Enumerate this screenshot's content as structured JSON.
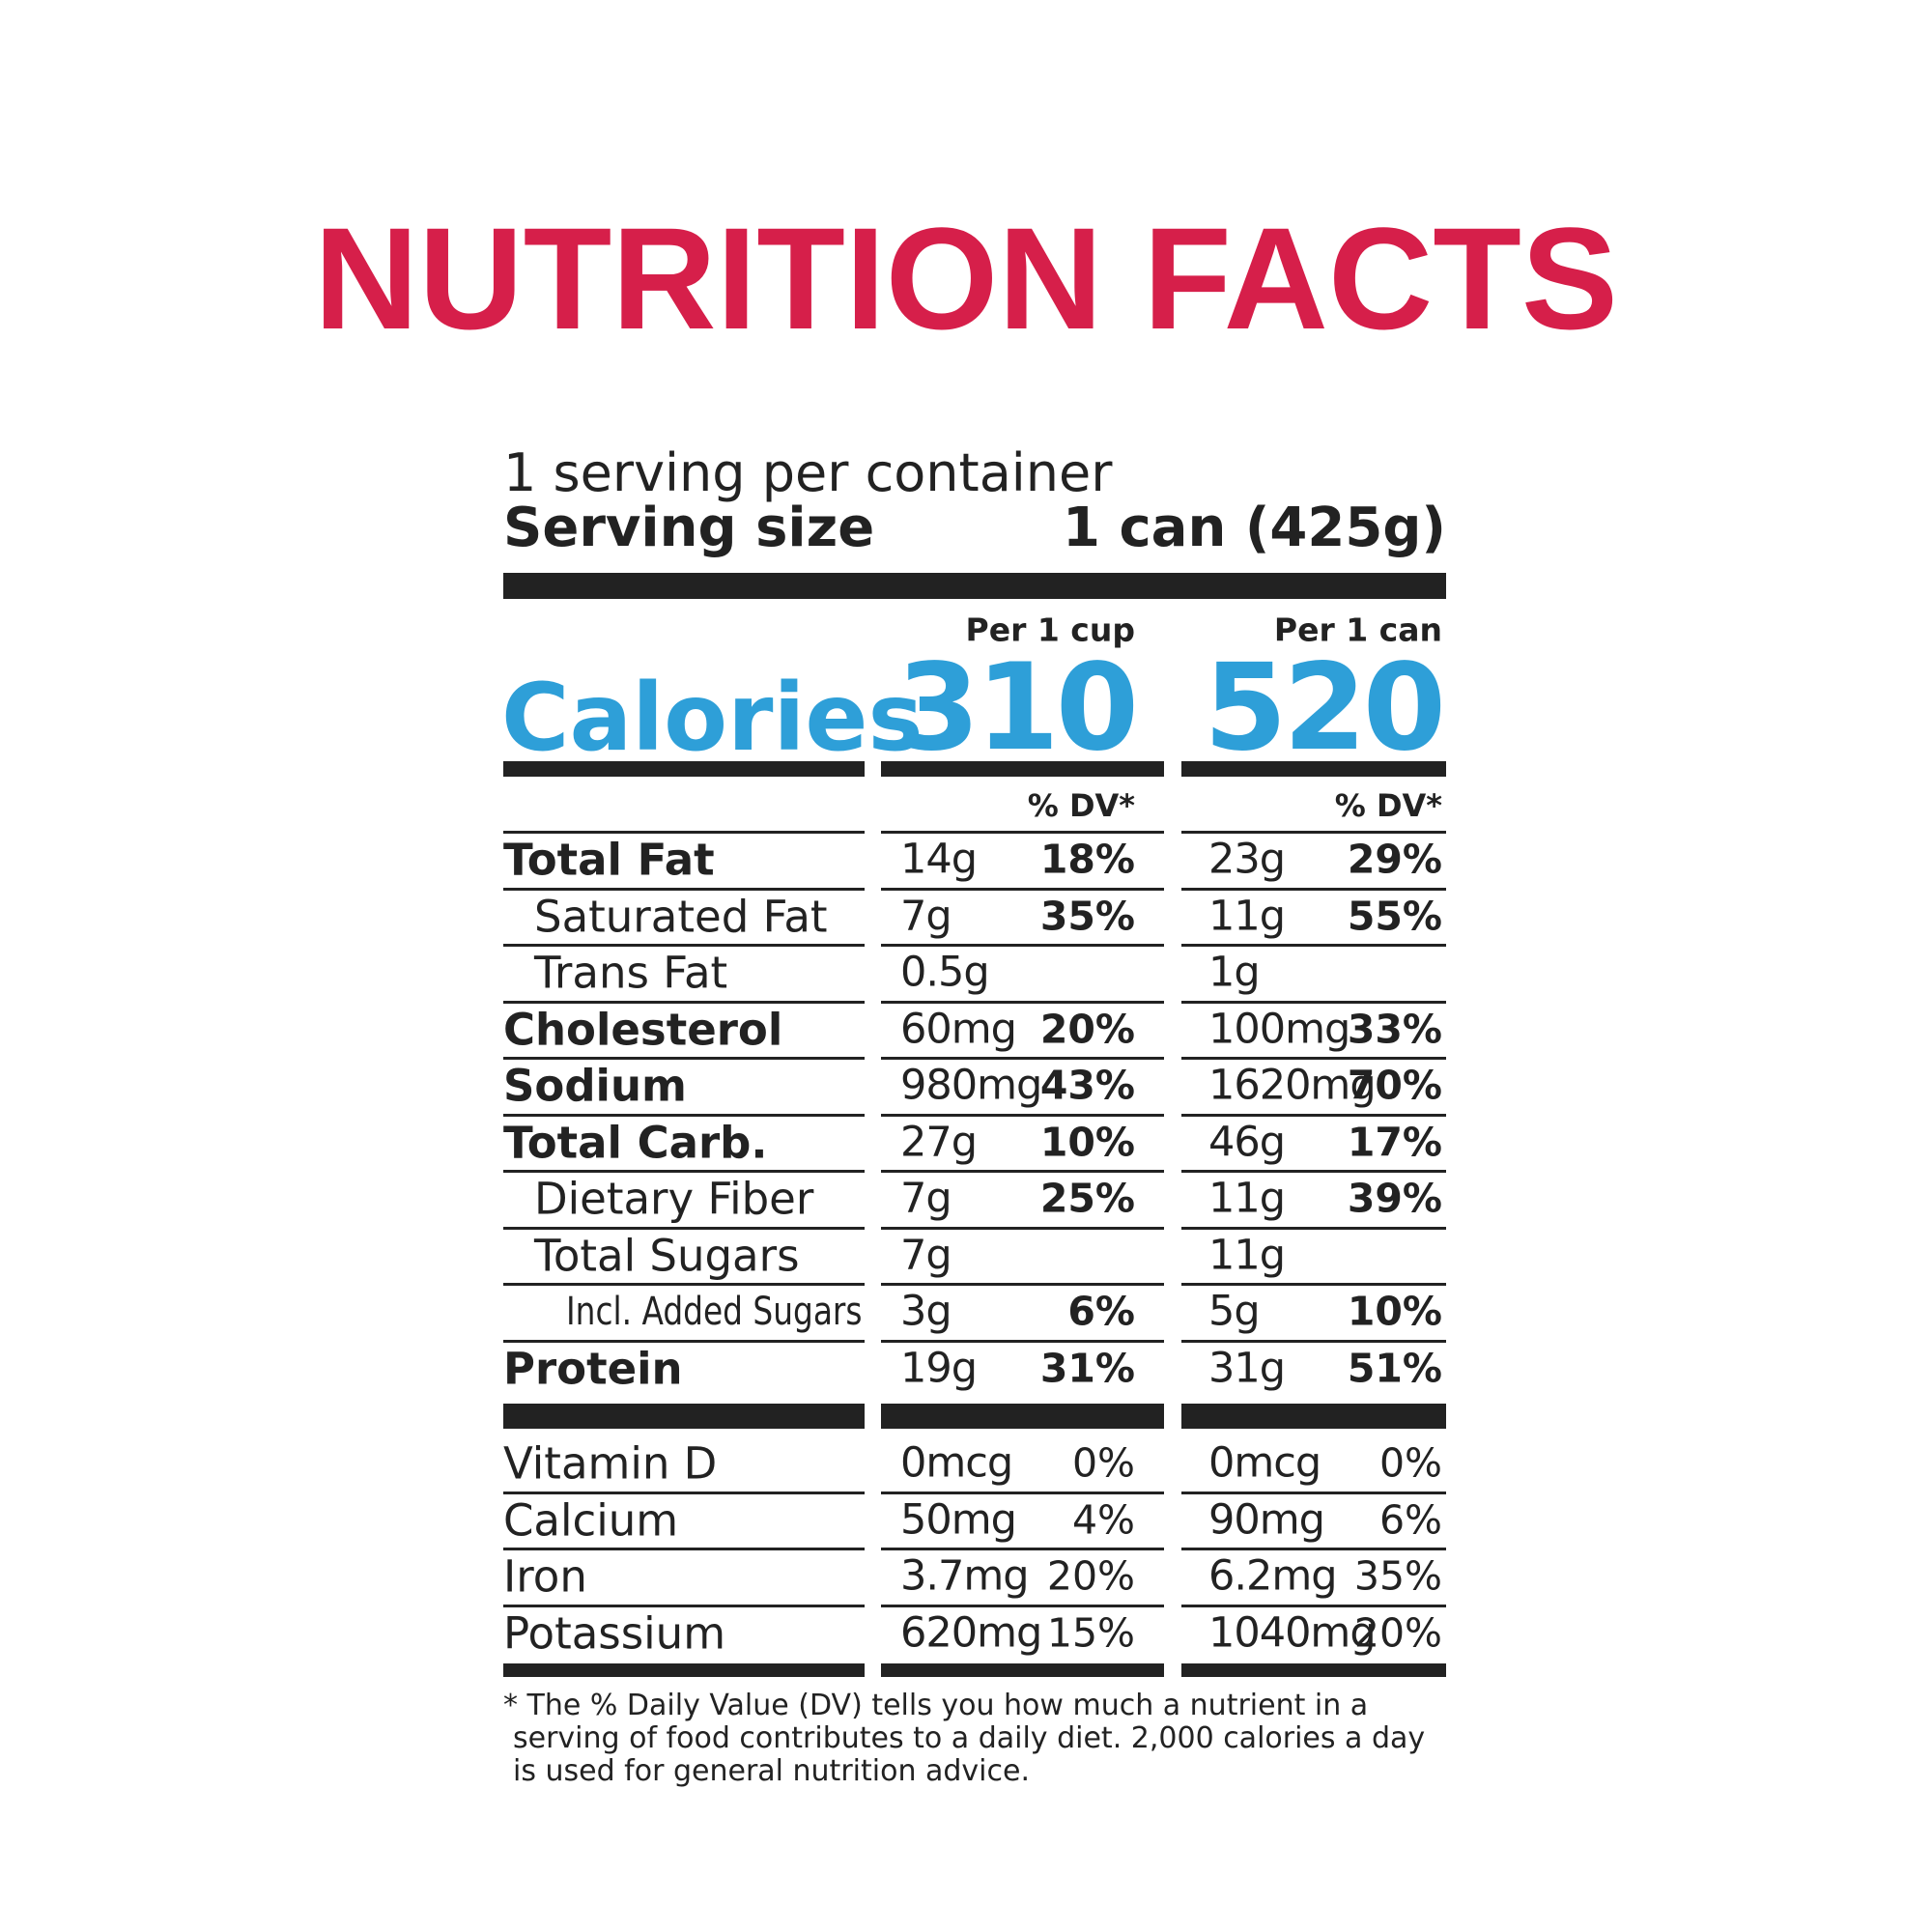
{
  "title": "NUTRITION FACTS",
  "servings": "1 serving per container",
  "serving_size": {
    "label": "Serving size",
    "value": "1 can (425g)"
  },
  "calories": {
    "label": "Calories",
    "columns": [
      {
        "header": "Per 1 cup",
        "value": 310,
        "dv_header": "% DV*"
      },
      {
        "header": "Per 1 can",
        "value": 520,
        "dv_header": "% DV*"
      }
    ]
  },
  "nutrients": [
    {
      "name": "Total Fat",
      "level": 0,
      "bold": true,
      "values": [
        [
          "14g",
          "18%"
        ],
        [
          "23g",
          "29%"
        ]
      ]
    },
    {
      "name": "Saturated Fat",
      "level": 1,
      "bold": false,
      "values": [
        [
          "7g",
          "35%"
        ],
        [
          "11g",
          "55%"
        ]
      ]
    },
    {
      "name": "Trans Fat",
      "level": 1,
      "bold": false,
      "values": [
        [
          "0.5g"
        ],
        [
          "1g"
        ]
      ]
    },
    {
      "name": "Cholesterol",
      "level": 0,
      "bold": true,
      "values": [
        [
          "60mg",
          "20%"
        ],
        [
          "100mg",
          "33%"
        ]
      ]
    },
    {
      "name": "Sodium",
      "level": 0,
      "bold": true,
      "values": [
        [
          "980mg",
          "43%"
        ],
        [
          "1620mg",
          "70%"
        ]
      ]
    },
    {
      "name": "Total Carb.",
      "level": 0,
      "bold": true,
      "values": [
        [
          "27g",
          "10%"
        ],
        [
          "46g",
          "17%"
        ]
      ]
    },
    {
      "name": "Dietary Fiber",
      "level": 1,
      "bold": false,
      "values": [
        [
          "7g",
          "25%"
        ],
        [
          "11g",
          "39%"
        ]
      ]
    },
    {
      "name": "Total Sugars",
      "level": 1,
      "bold": false,
      "values": [
        [
          "7g"
        ],
        [
          "11g"
        ]
      ]
    },
    {
      "name": "Incl. Added Sugars",
      "level": 2,
      "bold": false,
      "values": [
        [
          "3g",
          "6%"
        ],
        [
          "5g",
          "10%"
        ]
      ]
    },
    {
      "name": "Protein",
      "level": 0,
      "bold": true,
      "values": [
        [
          "19g",
          "31%"
        ],
        [
          "31g",
          "51%"
        ]
      ]
    }
  ],
  "vitamins": [
    {
      "name": "Vitamin D",
      "values": [
        [
          "0mcg",
          "0%"
        ],
        [
          "0mcg",
          "0%"
        ]
      ]
    },
    {
      "name": "Calcium",
      "values": [
        [
          "50mg",
          "4%"
        ],
        [
          "90mg",
          "6%"
        ]
      ]
    },
    {
      "name": "Iron",
      "values": [
        [
          "3.7mg",
          "20%"
        ],
        [
          "6.2mg",
          "35%"
        ]
      ]
    },
    {
      "name": "Potassium",
      "values": [
        [
          "620mg",
          "15%"
        ],
        [
          "1040mg",
          "20%"
        ]
      ]
    }
  ],
  "footnote": [
    "* The % Daily Value (DV) tells you how much a nutrient in a",
    "serving of food contributes to a daily diet. 2,000 calories a day",
    "is used for general nutrition advice."
  ]
}
